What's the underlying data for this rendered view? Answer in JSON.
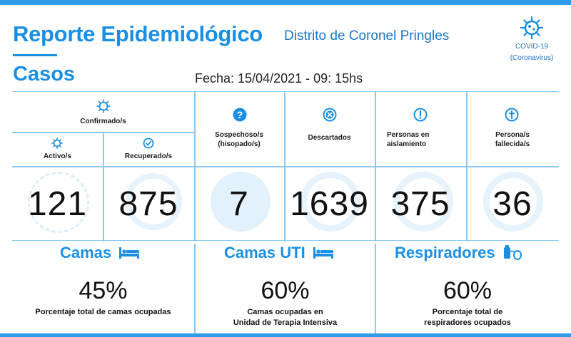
{
  "header": {
    "title": "Reporte Epidemiológico",
    "subtitle": "Distrito de Coronel Pringles",
    "section": "Casos",
    "date": "Fecha: 15/04/2021 - 09: 15hs",
    "covid_line1": "COVID-19",
    "covid_line2": "(Coronavirus)",
    "covid_icon": "virus-icon"
  },
  "cases": {
    "confirmed_label": "Confirmado/s",
    "active_label": "Activo/s",
    "active": "121",
    "recovered_label": "Recuperado/s",
    "recovered": "875",
    "suspected_label_1": "Sospechoso/s",
    "suspected_label_2": "(hisopado/s)",
    "suspected": "7",
    "discarded_label": "Descartados",
    "discarded": "1639",
    "isolation_label_1": "Personas en",
    "isolation_label_2": "aislamiento",
    "isolation": "375",
    "deceased_label_1": "Persona/s",
    "deceased_label_2": "fallecida/s",
    "deceased": "36"
  },
  "beds": {
    "title": "Camas",
    "percent": "45%",
    "fill": 0.45,
    "desc": "Porcentaje total de camas ocupadas"
  },
  "icu": {
    "title": "Camas UTI",
    "percent": "60%",
    "fill": 0.6,
    "desc_1": "Camas ocupadas en",
    "desc_2": "Unidad de Terapia Intensiva"
  },
  "respirators": {
    "title": "Respiradores",
    "percent": "60%",
    "fill": 0.6,
    "desc_1": "Porcentaje total de",
    "desc_2": "respiradores ocupados"
  },
  "colors": {
    "accent": "#1b8fe3",
    "border": "#8cc8f2",
    "watermark": "#e3f1fc"
  }
}
